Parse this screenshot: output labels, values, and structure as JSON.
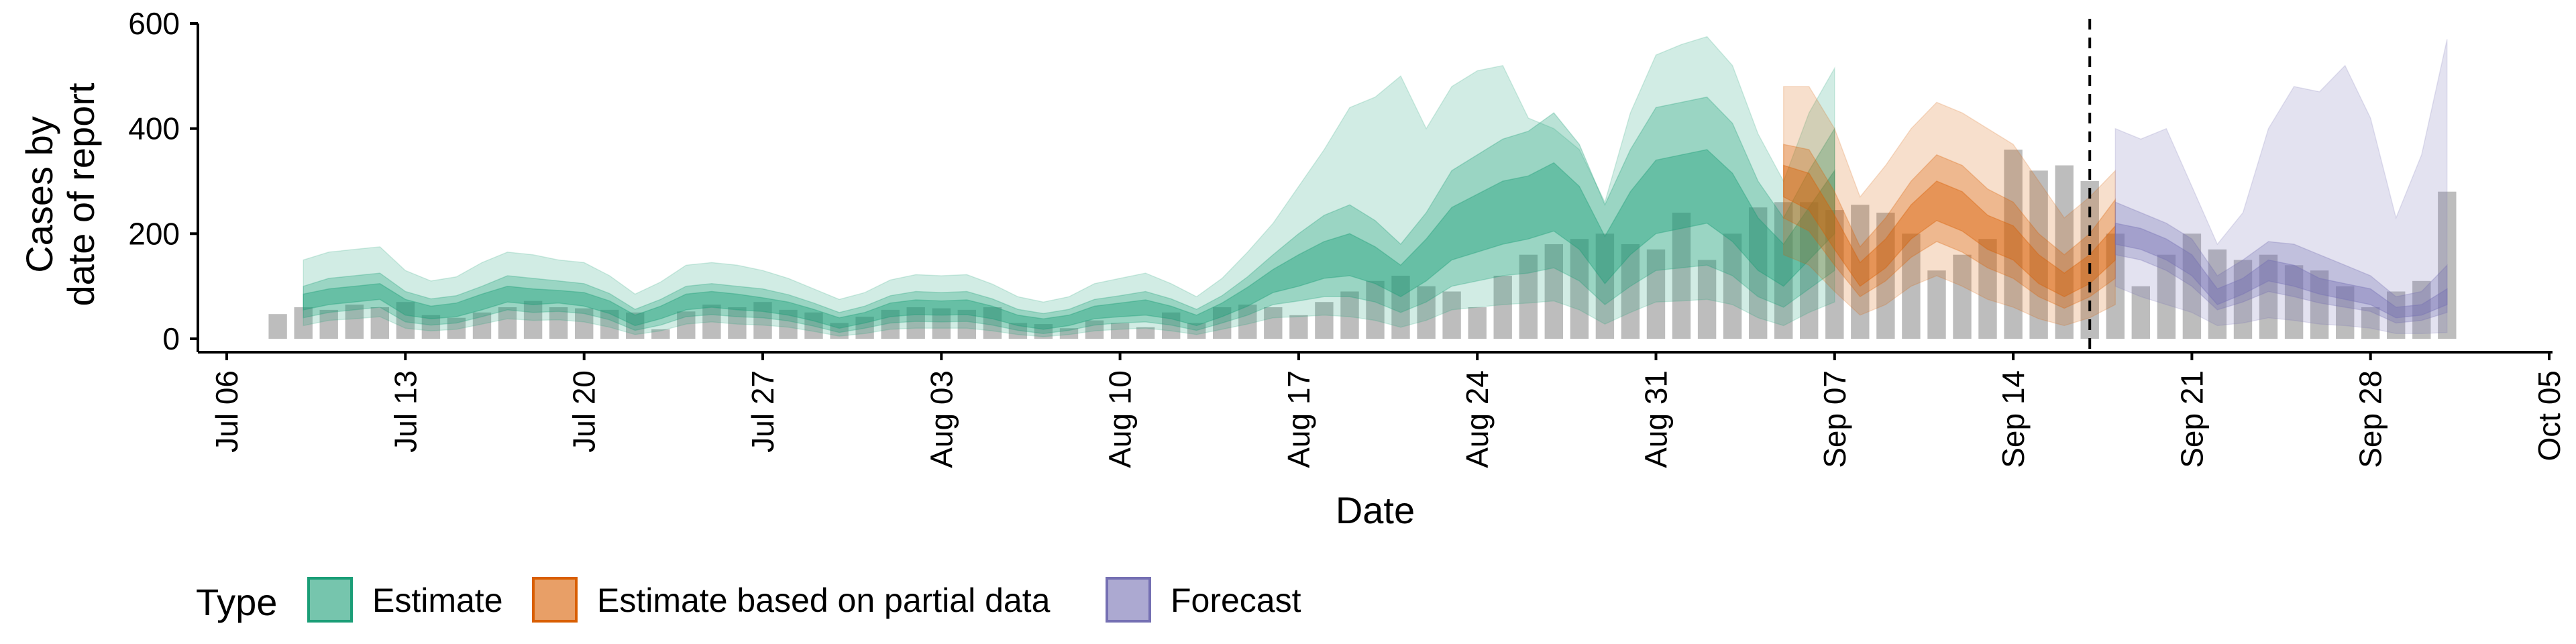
{
  "chart_data": {
    "type": "area",
    "xlabel": "Date",
    "ylabel": [
      "Cases by",
      "date of report"
    ],
    "ylim": [
      0,
      600
    ],
    "yticks": [
      0,
      200,
      400,
      600
    ],
    "xlim": [
      "2020-07-05",
      "2020-10-05"
    ],
    "xticks": [
      {
        "date": "2020-07-06",
        "label": "Jul 06"
      },
      {
        "date": "2020-07-13",
        "label": "Jul 13"
      },
      {
        "date": "2020-07-20",
        "label": "Jul 20"
      },
      {
        "date": "2020-07-27",
        "label": "Jul 27"
      },
      {
        "date": "2020-08-03",
        "label": "Aug 03"
      },
      {
        "date": "2020-08-10",
        "label": "Aug 10"
      },
      {
        "date": "2020-08-17",
        "label": "Aug 17"
      },
      {
        "date": "2020-08-24",
        "label": "Aug 24"
      },
      {
        "date": "2020-08-31",
        "label": "Aug 31"
      },
      {
        "date": "2020-09-07",
        "label": "Sep 07"
      },
      {
        "date": "2020-09-14",
        "label": "Sep 14"
      },
      {
        "date": "2020-09-21",
        "label": "Sep 21"
      },
      {
        "date": "2020-09-28",
        "label": "Sep 28"
      },
      {
        "date": "2020-10-05",
        "label": "Oct 05"
      }
    ],
    "vline_date": "2020-09-17",
    "legend": {
      "title": "Type",
      "position": "bottom",
      "entries": [
        {
          "label": "Estimate",
          "fill": "#1b9e77",
          "stroke": "#1b9e77"
        },
        {
          "label": "Estimate based on partial data",
          "fill": "#d95f02",
          "stroke": "#d95f02"
        },
        {
          "label": "Forecast",
          "fill": "#7570b3",
          "stroke": "#7570b3"
        }
      ]
    },
    "bars": {
      "color": "#bdbdbd",
      "start_date": "2020-07-08",
      "values": [
        47,
        60,
        55,
        65,
        60,
        70,
        45,
        40,
        50,
        60,
        72,
        60,
        58,
        55,
        50,
        18,
        52,
        65,
        60,
        70,
        55,
        50,
        30,
        42,
        55,
        60,
        58,
        55,
        60,
        30,
        28,
        20,
        35,
        30,
        22,
        50,
        30,
        60,
        65,
        60,
        45,
        70,
        90,
        110,
        120,
        100,
        90,
        60,
        120,
        160,
        180,
        190,
        200,
        180,
        170,
        240,
        150,
        200,
        250,
        260,
        260,
        245,
        255,
        240,
        200,
        130,
        160,
        190,
        360,
        320,
        330,
        300,
        200,
        100,
        160,
        200,
        170,
        150,
        160,
        140,
        130,
        100,
        60,
        90,
        110,
        280
      ]
    },
    "series": [
      {
        "name": "Estimate",
        "color": "#1b9e77",
        "start_date": "2020-07-09",
        "median": [
          70,
          80,
          85,
          90,
          60,
          50,
          55,
          70,
          85,
          80,
          80,
          75,
          60,
          35,
          50,
          70,
          75,
          70,
          65,
          58,
          45,
          30,
          40,
          55,
          60,
          58,
          60,
          50,
          35,
          28,
          35,
          50,
          55,
          60,
          50,
          35,
          55,
          80,
          110,
          130,
          150,
          160,
          140,
          110,
          150,
          200,
          220,
          240,
          250,
          270,
          230,
          150,
          220,
          270,
          280,
          290,
          250,
          180,
          140,
          200,
          260
        ],
        "inner_lo": [
          55,
          65,
          70,
          75,
          45,
          38,
          42,
          55,
          70,
          65,
          68,
          62,
          48,
          25,
          38,
          55,
          60,
          55,
          52,
          45,
          34,
          20,
          30,
          42,
          46,
          45,
          46,
          38,
          25,
          18,
          25,
          38,
          42,
          45,
          38,
          25,
          42,
          62,
          88,
          100,
          115,
          120,
          105,
          80,
          110,
          150,
          165,
          180,
          190,
          205,
          170,
          105,
          160,
          200,
          210,
          220,
          185,
          130,
          100,
          150,
          200
        ],
        "inner_hi": [
          85,
          95,
          100,
          105,
          75,
          62,
          68,
          85,
          100,
          95,
          92,
          88,
          72,
          45,
          62,
          85,
          90,
          85,
          78,
          70,
          56,
          40,
          50,
          68,
          74,
          72,
          74,
          62,
          45,
          38,
          45,
          62,
          68,
          74,
          62,
          45,
          68,
          98,
          132,
          160,
          185,
          200,
          175,
          140,
          190,
          250,
          275,
          300,
          310,
          335,
          290,
          195,
          280,
          340,
          350,
          360,
          315,
          230,
          180,
          250,
          320
        ],
        "mid_lo": [
          40,
          50,
          55,
          60,
          32,
          26,
          30,
          42,
          55,
          50,
          52,
          48,
          36,
          16,
          26,
          42,
          46,
          42,
          40,
          34,
          24,
          12,
          20,
          30,
          33,
          32,
          33,
          26,
          16,
          10,
          16,
          26,
          30,
          32,
          26,
          16,
          30,
          45,
          65,
          72,
          80,
          80,
          70,
          50,
          70,
          100,
          110,
          120,
          125,
          135,
          110,
          65,
          100,
          130,
          135,
          140,
          120,
          80,
          60,
          95,
          130
        ],
        "mid_hi": [
          100,
          115,
          120,
          125,
          90,
          76,
          82,
          100,
          120,
          115,
          110,
          105,
          86,
          56,
          75,
          100,
          105,
          100,
          95,
          84,
          68,
          50,
          62,
          82,
          90,
          88,
          90,
          76,
          56,
          48,
          56,
          75,
          82,
          90,
          76,
          56,
          82,
          118,
          160,
          200,
          235,
          255,
          225,
          180,
          240,
          320,
          350,
          380,
          395,
          430,
          370,
          255,
          360,
          440,
          450,
          460,
          410,
          300,
          230,
          320,
          400
        ],
        "outer_lo": [
          25,
          35,
          38,
          42,
          20,
          15,
          18,
          28,
          38,
          35,
          36,
          32,
          22,
          8,
          15,
          28,
          32,
          28,
          26,
          22,
          14,
          5,
          10,
          18,
          20,
          20,
          20,
          15,
          8,
          4,
          8,
          15,
          18,
          20,
          15,
          8,
          18,
          28,
          40,
          42,
          45,
          42,
          35,
          22,
          35,
          55,
          60,
          65,
          68,
          72,
          55,
          28,
          50,
          70,
          72,
          75,
          65,
          40,
          25,
          50,
          70
        ],
        "outer_hi": [
          150,
          165,
          170,
          175,
          130,
          110,
          118,
          145,
          165,
          160,
          150,
          145,
          120,
          85,
          108,
          140,
          145,
          140,
          130,
          115,
          95,
          75,
          88,
          112,
          122,
          120,
          122,
          104,
          80,
          70,
          80,
          105,
          115,
          125,
          105,
          80,
          115,
          165,
          220,
          290,
          360,
          440,
          460,
          500,
          400,
          480,
          510,
          520,
          420,
          400,
          360,
          260,
          430,
          540,
          560,
          575,
          520,
          390,
          300,
          430,
          515
        ]
      },
      {
        "name": "Estimate based on partial data",
        "color": "#d95f02",
        "start_date": "2020-09-05",
        "median": [
          300,
          280,
          200,
          120,
          160,
          220,
          260,
          240,
          200,
          180,
          130,
          100,
          130,
          180
        ],
        "inner_lo": [
          270,
          245,
          170,
          100,
          135,
          190,
          225,
          205,
          170,
          150,
          105,
          80,
          105,
          150
        ],
        "inner_hi": [
          330,
          315,
          235,
          145,
          190,
          255,
          300,
          280,
          235,
          215,
          160,
          125,
          160,
          215
        ],
        "mid_lo": [
          230,
          205,
          140,
          80,
          110,
          155,
          185,
          165,
          135,
          115,
          80,
          58,
          80,
          115
        ],
        "mid_hi": [
          370,
          360,
          280,
          175,
          230,
          300,
          350,
          330,
          285,
          260,
          200,
          160,
          200,
          265
        ],
        "outer_lo": [
          160,
          140,
          90,
          45,
          65,
          100,
          120,
          100,
          75,
          60,
          38,
          25,
          40,
          65
        ],
        "outer_hi": [
          480,
          480,
          400,
          270,
          330,
          400,
          450,
          430,
          400,
          370,
          300,
          230,
          270,
          320
        ]
      },
      {
        "name": "Forecast",
        "color": "#7570b3",
        "start_date": "2020-09-18",
        "median": [
          200,
          190,
          170,
          140,
          80,
          100,
          130,
          120,
          100,
          90,
          80,
          50,
          55,
          80
        ],
        "inner_lo": [
          180,
          170,
          150,
          120,
          65,
          85,
          110,
          100,
          85,
          75,
          65,
          40,
          45,
          65
        ],
        "inner_hi": [
          220,
          210,
          190,
          160,
          95,
          115,
          150,
          140,
          115,
          105,
          95,
          60,
          65,
          95
        ],
        "mid_lo": [
          160,
          150,
          130,
          100,
          55,
          70,
          90,
          80,
          68,
          60,
          52,
          30,
          35,
          50
        ],
        "mid_hi": [
          260,
          240,
          220,
          190,
          120,
          150,
          185,
          180,
          160,
          140,
          120,
          80,
          90,
          140
        ],
        "outer_lo": [
          100,
          80,
          65,
          50,
          25,
          30,
          40,
          35,
          28,
          25,
          20,
          10,
          10,
          12
        ],
        "outer_hi": [
          400,
          380,
          400,
          290,
          180,
          240,
          400,
          480,
          470,
          520,
          420,
          230,
          350,
          570
        ]
      }
    ]
  }
}
